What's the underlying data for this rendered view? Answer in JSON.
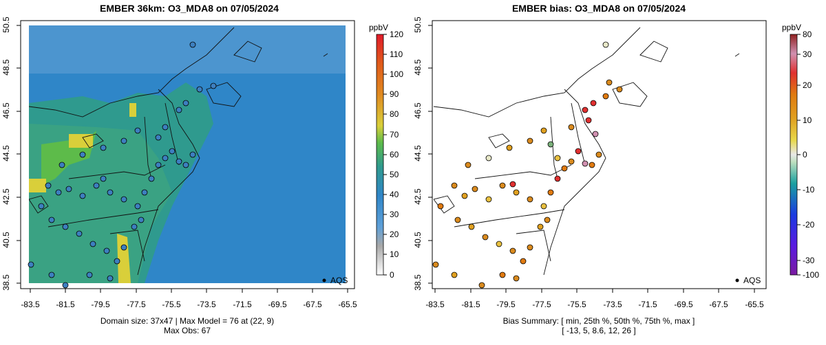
{
  "left_panel": {
    "title": "EMBER 36km: O3_MDA8 on 07/05/2024",
    "caption_line1": "Domain size: 37x47 | Max Model = 76 at (22, 9)",
    "caption_line2": "Max Obs: 67",
    "legend_label": "AQS",
    "colorbar": {
      "unit": "ppbV",
      "ticks": [
        "120",
        "110",
        "100",
        "90",
        "80",
        "70",
        "60",
        "50",
        "40",
        "30",
        "20",
        "10",
        "0"
      ]
    }
  },
  "right_panel": {
    "title": "EMBER bias: O3_MDA8 on 07/05/2024",
    "caption_line1": "Bias Summary: [ min, 25th %, 50th %, 75th %, max ]",
    "caption_line2": "[ -13,   5,   8.6,   12,   26 ]",
    "legend_label": "AQS",
    "colorbar": {
      "unit": "ppbV",
      "ticks": [
        "80",
        "30",
        "20",
        "10",
        "0",
        "-10",
        "-20",
        "-30",
        "-100"
      ]
    }
  },
  "axes": {
    "x_ticks": [
      "-83.5",
      "-81.5",
      "-79.5",
      "-77.5",
      "-75.5",
      "-73.5",
      "-71.5",
      "-69.5",
      "-67.5",
      "-65.5"
    ],
    "y_ticks": [
      "38.5",
      "40.5",
      "42.5",
      "44.5",
      "46.5",
      "48.5",
      "50.5"
    ],
    "xlim": [
      -84.1,
      -65.1
    ],
    "ylim": [
      38.5,
      50.5
    ]
  },
  "colors": {
    "ocean_blue": "#2f86c8",
    "land_teal": "#2f9a8e",
    "high_yellow": "#d9cf3a",
    "station_blue": "#3d7fbf",
    "bias_orange": "#d98a1e",
    "bias_red": "#e03030"
  },
  "bias_summary": {
    "min": -13,
    "p25": 5,
    "p50": 8.6,
    "p75": 12,
    "max": 26
  }
}
